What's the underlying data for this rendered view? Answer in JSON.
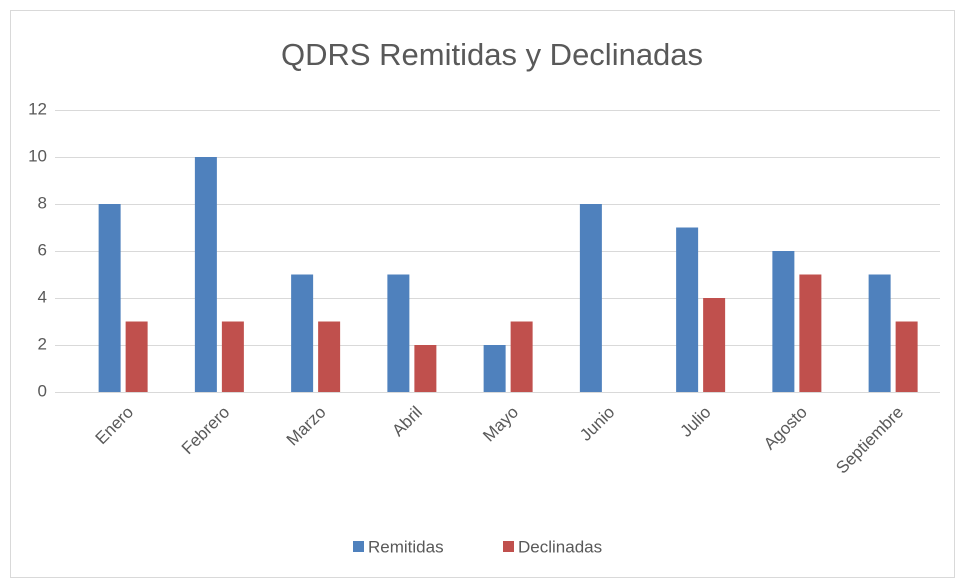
{
  "chart_data": {
    "type": "bar",
    "title": "QDRS Remitidas y Declinadas",
    "categories": [
      "Enero",
      "Febrero",
      "Marzo",
      "Abril",
      "Mayo",
      "Junio",
      "Julio",
      "Agosto",
      "Septiembre"
    ],
    "series": [
      {
        "name": "Remitidas",
        "color": "#4f81bd",
        "values": [
          8,
          10,
          5,
          5,
          2,
          8,
          7,
          6,
          5
        ]
      },
      {
        "name": "Declinadas",
        "color": "#c0504d",
        "values": [
          3,
          3,
          3,
          2,
          3,
          0,
          4,
          5,
          3
        ]
      }
    ],
    "ylim": [
      0,
      12
    ],
    "yticks": [
      0,
      2,
      4,
      6,
      8,
      10,
      12
    ],
    "grid": true,
    "legend": "bottom"
  }
}
